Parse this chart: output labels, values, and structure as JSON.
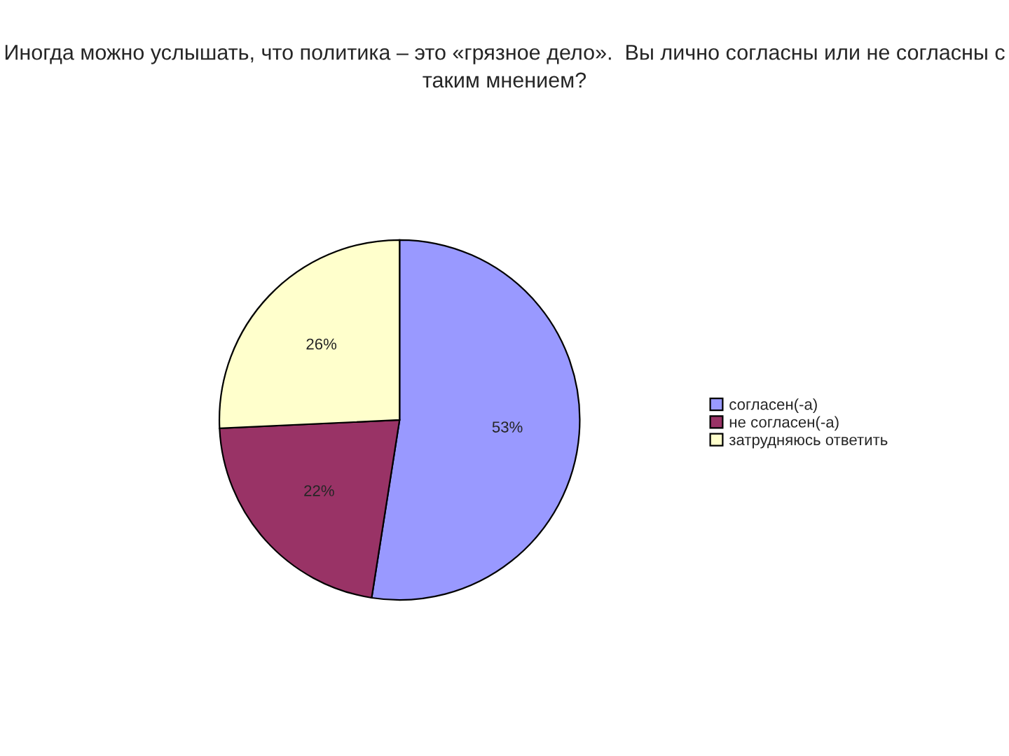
{
  "chart_data": {
    "type": "pie",
    "title": "Иногда можно услышать, что политика – это «грязное дело».  Вы лично согласны или не согласны с таким мнением?",
    "categories": [
      "согласен(-а)",
      "не согласен(-а)",
      "затрудняюсь ответить"
    ],
    "values": [
      53,
      22,
      26
    ],
    "colors": [
      "#9999ff",
      "#993366",
      "#ffffcc"
    ],
    "value_labels": [
      "53%",
      "22%",
      "26%"
    ],
    "legend": "right"
  }
}
